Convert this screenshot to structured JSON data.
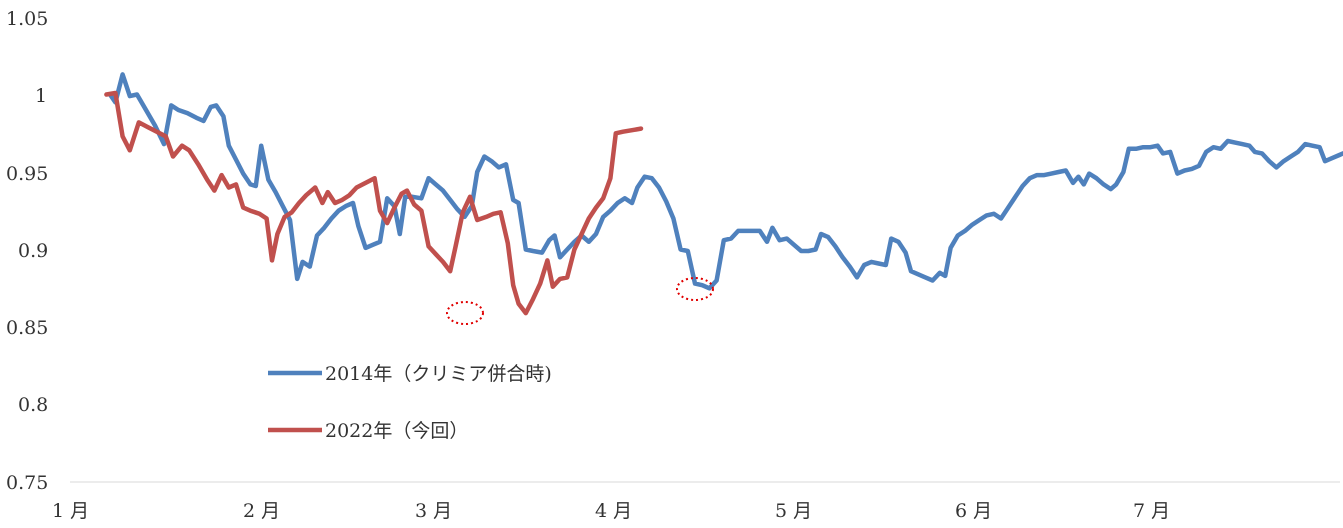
{
  "chart_data": {
    "type": "line",
    "title": "",
    "xlabel": "",
    "ylabel": "",
    "ylim": [
      0.75,
      1.05
    ],
    "yticks": [
      "1.05",
      "1",
      "0.95",
      "0.9",
      "0.85",
      "0.8",
      "0.75"
    ],
    "xlim": [
      0,
      7.95
    ],
    "xticks": [
      "1 月",
      "2 月",
      "3 月",
      "4 月",
      "5 月",
      "6 月",
      "7 月"
    ],
    "grid": false,
    "legend": "center-left",
    "series": [
      {
        "name": "2014年（クリミア併合時)",
        "color": "#4f81bd",
        "points": [
          [
            0.25,
            1.0
          ],
          [
            0.28,
            0.995
          ],
          [
            0.32,
            1.013
          ],
          [
            0.36,
            0.999
          ],
          [
            0.4,
            1.0
          ],
          [
            0.45,
            0.99
          ],
          [
            0.5,
            0.98
          ],
          [
            0.55,
            0.968
          ],
          [
            0.59,
            0.993
          ],
          [
            0.63,
            0.99
          ],
          [
            0.68,
            0.988
          ],
          [
            0.73,
            0.985
          ],
          [
            0.77,
            0.983
          ],
          [
            0.81,
            0.992
          ],
          [
            0.84,
            0.993
          ],
          [
            0.88,
            0.986
          ],
          [
            0.91,
            0.967
          ],
          [
            0.95,
            0.958
          ],
          [
            0.99,
            0.949
          ],
          [
            1.03,
            0.942
          ],
          [
            1.06,
            0.941
          ],
          [
            1.09,
            0.967
          ],
          [
            1.13,
            0.945
          ],
          [
            1.17,
            0.937
          ],
          [
            1.21,
            0.928
          ],
          [
            1.25,
            0.919
          ],
          [
            1.29,
            0.881
          ],
          [
            1.32,
            0.892
          ],
          [
            1.36,
            0.889
          ],
          [
            1.4,
            0.909
          ],
          [
            1.44,
            0.914
          ],
          [
            1.48,
            0.92
          ],
          [
            1.52,
            0.925
          ],
          [
            1.56,
            0.928
          ],
          [
            1.6,
            0.93
          ],
          [
            1.63,
            0.915
          ],
          [
            1.67,
            0.901
          ],
          [
            1.71,
            0.903
          ],
          [
            1.75,
            0.905
          ],
          [
            1.79,
            0.933
          ],
          [
            1.83,
            0.928
          ],
          [
            1.86,
            0.91
          ],
          [
            1.89,
            0.934
          ],
          [
            1.93,
            0.934
          ],
          [
            1.98,
            0.933
          ],
          [
            2.02,
            0.946
          ],
          [
            2.06,
            0.942
          ],
          [
            2.1,
            0.938
          ],
          [
            2.14,
            0.932
          ],
          [
            2.18,
            0.926
          ],
          [
            2.22,
            0.921
          ],
          [
            2.26,
            0.928
          ],
          [
            2.29,
            0.95
          ],
          [
            2.33,
            0.96
          ],
          [
            2.37,
            0.957
          ],
          [
            2.41,
            0.953
          ],
          [
            2.45,
            0.955
          ],
          [
            2.49,
            0.932
          ],
          [
            2.52,
            0.93
          ],
          [
            2.56,
            0.9
          ],
          [
            2.6,
            0.899
          ],
          [
            2.65,
            0.898
          ],
          [
            2.69,
            0.906
          ],
          [
            2.72,
            0.909
          ],
          [
            2.75,
            0.895
          ],
          [
            2.79,
            0.9
          ],
          [
            2.83,
            0.905
          ],
          [
            2.87,
            0.909
          ],
          [
            2.91,
            0.905
          ],
          [
            2.95,
            0.91
          ],
          [
            2.99,
            0.921
          ],
          [
            3.03,
            0.925
          ],
          [
            3.07,
            0.93
          ],
          [
            3.11,
            0.933
          ],
          [
            3.15,
            0.93
          ],
          [
            3.18,
            0.94
          ],
          [
            3.22,
            0.947
          ],
          [
            3.26,
            0.946
          ],
          [
            3.3,
            0.94
          ],
          [
            3.34,
            0.931
          ],
          [
            3.38,
            0.92
          ],
          [
            3.42,
            0.9
          ],
          [
            3.46,
            0.899
          ],
          [
            3.5,
            0.878
          ],
          [
            3.54,
            0.877
          ],
          [
            3.58,
            0.875
          ],
          [
            3.62,
            0.88
          ],
          [
            3.66,
            0.906
          ],
          [
            3.7,
            0.907
          ],
          [
            3.74,
            0.912
          ],
          [
            3.78,
            0.912
          ],
          [
            3.82,
            0.912
          ],
          [
            3.86,
            0.912
          ],
          [
            3.9,
            0.905
          ],
          [
            3.93,
            0.914
          ],
          [
            3.97,
            0.906
          ],
          [
            4.01,
            0.907
          ],
          [
            4.05,
            0.903
          ],
          [
            4.09,
            0.899
          ],
          [
            4.13,
            0.899
          ],
          [
            4.17,
            0.9
          ],
          [
            4.2,
            0.91
          ],
          [
            4.24,
            0.908
          ],
          [
            4.28,
            0.902
          ],
          [
            4.32,
            0.895
          ],
          [
            4.36,
            0.889
          ],
          [
            4.4,
            0.882
          ],
          [
            4.44,
            0.89
          ],
          [
            4.48,
            0.892
          ],
          [
            4.52,
            0.891
          ],
          [
            4.56,
            0.89
          ],
          [
            4.59,
            0.907
          ],
          [
            4.63,
            0.905
          ],
          [
            4.67,
            0.898
          ],
          [
            4.7,
            0.886
          ],
          [
            4.74,
            0.884
          ],
          [
            4.78,
            0.882
          ],
          [
            4.82,
            0.88
          ],
          [
            4.86,
            0.885
          ],
          [
            4.89,
            0.883
          ],
          [
            4.92,
            0.901
          ],
          [
            4.96,
            0.909
          ],
          [
            5.0,
            0.912
          ],
          [
            5.04,
            0.916
          ],
          [
            5.08,
            0.919
          ],
          [
            5.12,
            0.922
          ],
          [
            5.16,
            0.923
          ],
          [
            5.2,
            0.92
          ],
          [
            5.24,
            0.927
          ],
          [
            5.28,
            0.934
          ],
          [
            5.32,
            0.941
          ],
          [
            5.36,
            0.946
          ],
          [
            5.4,
            0.948
          ],
          [
            5.44,
            0.948
          ],
          [
            5.48,
            0.949
          ],
          [
            5.52,
            0.95
          ],
          [
            5.56,
            0.951
          ],
          [
            5.6,
            0.943
          ],
          [
            5.63,
            0.947
          ],
          [
            5.66,
            0.942
          ],
          [
            5.69,
            0.949
          ],
          [
            5.73,
            0.946
          ],
          [
            5.77,
            0.942
          ],
          [
            5.81,
            0.939
          ],
          [
            5.84,
            0.942
          ],
          [
            5.88,
            0.95
          ],
          [
            5.91,
            0.965
          ],
          [
            5.95,
            0.965
          ],
          [
            5.99,
            0.966
          ],
          [
            6.03,
            0.966
          ],
          [
            6.07,
            0.967
          ],
          [
            6.1,
            0.962
          ],
          [
            6.14,
            0.963
          ],
          [
            6.18,
            0.949
          ],
          [
            6.22,
            0.951
          ],
          [
            6.26,
            0.952
          ],
          [
            6.3,
            0.954
          ],
          [
            6.34,
            0.963
          ],
          [
            6.38,
            0.966
          ],
          [
            6.42,
            0.965
          ],
          [
            6.46,
            0.97
          ],
          [
            6.5,
            0.969
          ],
          [
            6.54,
            0.968
          ],
          [
            6.58,
            0.967
          ],
          [
            6.61,
            0.963
          ],
          [
            6.65,
            0.962
          ],
          [
            6.69,
            0.957
          ],
          [
            6.73,
            0.953
          ],
          [
            6.77,
            0.957
          ],
          [
            6.81,
            0.96
          ],
          [
            6.85,
            0.963
          ],
          [
            6.89,
            0.968
          ],
          [
            6.93,
            0.967
          ],
          [
            6.97,
            0.966
          ],
          [
            7.0,
            0.957
          ],
          [
            7.04,
            0.959
          ],
          [
            7.08,
            0.961
          ],
          [
            7.12,
            0.963
          ],
          [
            7.16,
            0.965
          ],
          [
            7.2,
            0.964
          ],
          [
            7.24,
            0.961
          ],
          [
            7.27,
            0.972
          ],
          [
            7.31,
            0.974
          ],
          [
            7.35,
            0.975
          ],
          [
            7.39,
            0.977
          ],
          [
            7.43,
            0.982
          ],
          [
            7.47,
            0.984
          ]
        ]
      },
      {
        "name": "2022年（今回）",
        "color": "#c0504d",
        "points": [
          [
            0.23,
            1.0
          ],
          [
            0.28,
            1.001
          ],
          [
            0.32,
            0.973
          ],
          [
            0.36,
            0.964
          ],
          [
            0.41,
            0.982
          ],
          [
            0.46,
            0.979
          ],
          [
            0.51,
            0.976
          ],
          [
            0.56,
            0.973
          ],
          [
            0.6,
            0.96
          ],
          [
            0.65,
            0.967
          ],
          [
            0.69,
            0.964
          ],
          [
            0.74,
            0.955
          ],
          [
            0.79,
            0.945
          ],
          [
            0.83,
            0.938
          ],
          [
            0.87,
            0.948
          ],
          [
            0.91,
            0.94
          ],
          [
            0.95,
            0.942
          ],
          [
            0.99,
            0.927
          ],
          [
            1.03,
            0.925
          ],
          [
            1.08,
            0.923
          ],
          [
            1.12,
            0.92
          ],
          [
            1.15,
            0.893
          ],
          [
            1.18,
            0.91
          ],
          [
            1.22,
            0.921
          ],
          [
            1.26,
            0.924
          ],
          [
            1.3,
            0.93
          ],
          [
            1.34,
            0.935
          ],
          [
            1.39,
            0.94
          ],
          [
            1.43,
            0.93
          ],
          [
            1.46,
            0.937
          ],
          [
            1.5,
            0.93
          ],
          [
            1.54,
            0.932
          ],
          [
            1.58,
            0.935
          ],
          [
            1.62,
            0.94
          ],
          [
            1.67,
            0.943
          ],
          [
            1.72,
            0.946
          ],
          [
            1.75,
            0.925
          ],
          [
            1.79,
            0.917
          ],
          [
            1.83,
            0.927
          ],
          [
            1.87,
            0.936
          ],
          [
            1.9,
            0.938
          ],
          [
            1.94,
            0.929
          ],
          [
            1.98,
            0.925
          ],
          [
            2.02,
            0.902
          ],
          [
            2.06,
            0.897
          ],
          [
            2.1,
            0.892
          ],
          [
            2.14,
            0.886
          ],
          [
            2.17,
            0.902
          ],
          [
            2.21,
            0.924
          ],
          [
            2.25,
            0.934
          ],
          [
            2.29,
            0.919
          ],
          [
            2.34,
            0.921
          ],
          [
            2.38,
            0.923
          ],
          [
            2.42,
            0.924
          ],
          [
            2.46,
            0.904
          ],
          [
            2.49,
            0.877
          ],
          [
            2.52,
            0.865
          ],
          [
            2.56,
            0.859
          ],
          [
            2.6,
            0.868
          ],
          [
            2.64,
            0.878
          ],
          [
            2.68,
            0.893
          ],
          [
            2.71,
            0.876
          ],
          [
            2.75,
            0.881
          ],
          [
            2.79,
            0.882
          ],
          [
            2.83,
            0.9
          ],
          [
            2.87,
            0.91
          ],
          [
            2.91,
            0.92
          ],
          [
            2.95,
            0.927
          ],
          [
            2.99,
            0.933
          ],
          [
            3.03,
            0.946
          ],
          [
            3.06,
            0.975
          ],
          [
            3.1,
            0.976
          ],
          [
            3.15,
            0.977
          ],
          [
            3.2,
            0.978
          ]
        ]
      }
    ]
  }
}
